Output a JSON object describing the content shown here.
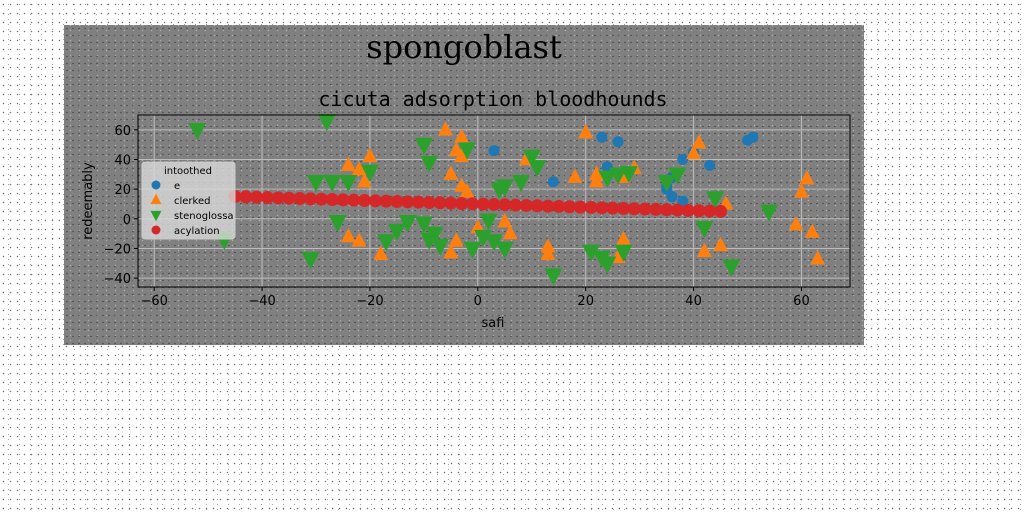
{
  "figure": {
    "suptitle": "spongoblast",
    "background": "#808080"
  },
  "chart_data": {
    "type": "scatter",
    "title": "cicuta adsorption bloodhounds",
    "xlabel": "safi",
    "ylabel": "redeemably",
    "xlim": [
      -63,
      69
    ],
    "ylim": [
      -46,
      70
    ],
    "xticks": [
      -60,
      -40,
      -20,
      0,
      20,
      40,
      60
    ],
    "yticks": [
      -40,
      -20,
      0,
      20,
      40,
      60
    ],
    "xtick_labels": [
      "−60",
      "−40",
      "−20",
      "0",
      "20",
      "40",
      "60"
    ],
    "ytick_labels": [
      "−40",
      "−20",
      "0",
      "20",
      "40",
      "60"
    ],
    "grid": true,
    "legend": {
      "title": "intoothed",
      "placement": "center-left"
    },
    "series": [
      {
        "name": "e",
        "marker": "circle",
        "color": "#1f77b4",
        "points": [
          [
            23,
            55
          ],
          [
            26,
            52
          ],
          [
            3,
            46
          ],
          [
            14,
            25
          ],
          [
            24,
            35
          ],
          [
            36,
            28
          ],
          [
            38,
            40
          ],
          [
            43,
            36
          ],
          [
            40,
            45
          ],
          [
            35,
            22
          ],
          [
            36,
            15
          ],
          [
            38,
            12
          ],
          [
            50,
            53
          ],
          [
            51,
            55
          ],
          [
            35,
            20
          ]
        ]
      },
      {
        "name": "clerked",
        "marker": "triangle-up",
        "color": "#ff7f0e",
        "points": [
          [
            -24,
            36
          ],
          [
            -22,
            33
          ],
          [
            -20,
            42
          ],
          [
            -21,
            25
          ],
          [
            -6,
            60
          ],
          [
            -3,
            55
          ],
          [
            -4,
            46
          ],
          [
            -3,
            42
          ],
          [
            -5,
            30
          ],
          [
            -3,
            22
          ],
          [
            -2,
            18
          ],
          [
            9,
            40
          ],
          [
            20,
            58
          ],
          [
            18,
            28
          ],
          [
            22,
            30
          ],
          [
            22,
            25
          ],
          [
            27,
            30
          ],
          [
            29,
            34
          ],
          [
            41,
            51
          ],
          [
            40,
            44
          ],
          [
            27,
            -14
          ],
          [
            42,
            -22
          ],
          [
            45,
            -18
          ],
          [
            46,
            10
          ],
          [
            59,
            -4
          ],
          [
            60,
            18
          ],
          [
            61,
            27
          ],
          [
            62,
            -9
          ],
          [
            63,
            -27
          ],
          [
            -24,
            -12
          ],
          [
            -22,
            -15
          ],
          [
            -18,
            -24
          ],
          [
            -5,
            -23
          ],
          [
            -4,
            -15
          ],
          [
            0,
            -6
          ],
          [
            5,
            -2
          ],
          [
            6,
            -10
          ],
          [
            13,
            -19
          ],
          [
            13,
            -24
          ],
          [
            26,
            -26
          ],
          [
            27,
            28
          ]
        ]
      },
      {
        "name": "stenoglossa",
        "marker": "triangle-down",
        "color": "#2ca02c",
        "points": [
          [
            -52,
            60
          ],
          [
            -28,
            66
          ],
          [
            -30,
            25
          ],
          [
            -27,
            25
          ],
          [
            -24,
            25
          ],
          [
            -20,
            32
          ],
          [
            -9,
            38
          ],
          [
            -10,
            50
          ],
          [
            -2,
            47
          ],
          [
            10,
            42
          ],
          [
            11,
            35
          ],
          [
            8,
            25
          ],
          [
            5,
            22
          ],
          [
            4,
            20
          ],
          [
            -26,
            -2
          ],
          [
            -17,
            -15
          ],
          [
            -15,
            -8
          ],
          [
            -13,
            -2
          ],
          [
            -10,
            -3
          ],
          [
            -8,
            -10
          ],
          [
            -9,
            -14
          ],
          [
            -7,
            -18
          ],
          [
            -1,
            -20
          ],
          [
            1,
            -12
          ],
          [
            2,
            -1
          ],
          [
            3,
            -15
          ],
          [
            5,
            -20
          ],
          [
            14,
            -38
          ],
          [
            21,
            -22
          ],
          [
            23,
            -26
          ],
          [
            24,
            -30
          ],
          [
            27,
            -22
          ],
          [
            28,
            31
          ],
          [
            35,
            25
          ],
          [
            42,
            -6
          ],
          [
            44,
            14
          ],
          [
            47,
            -32
          ],
          [
            54,
            5
          ],
          [
            -31,
            -27
          ],
          [
            -47,
            -14
          ],
          [
            24,
            28
          ],
          [
            26,
            30
          ],
          [
            37,
            30
          ]
        ]
      },
      {
        "name": "acylation",
        "marker": "circle",
        "color": "#d62728",
        "x_range": [
          -45,
          45
        ],
        "y_range": [
          15,
          5
        ],
        "count": 46
      }
    ]
  }
}
